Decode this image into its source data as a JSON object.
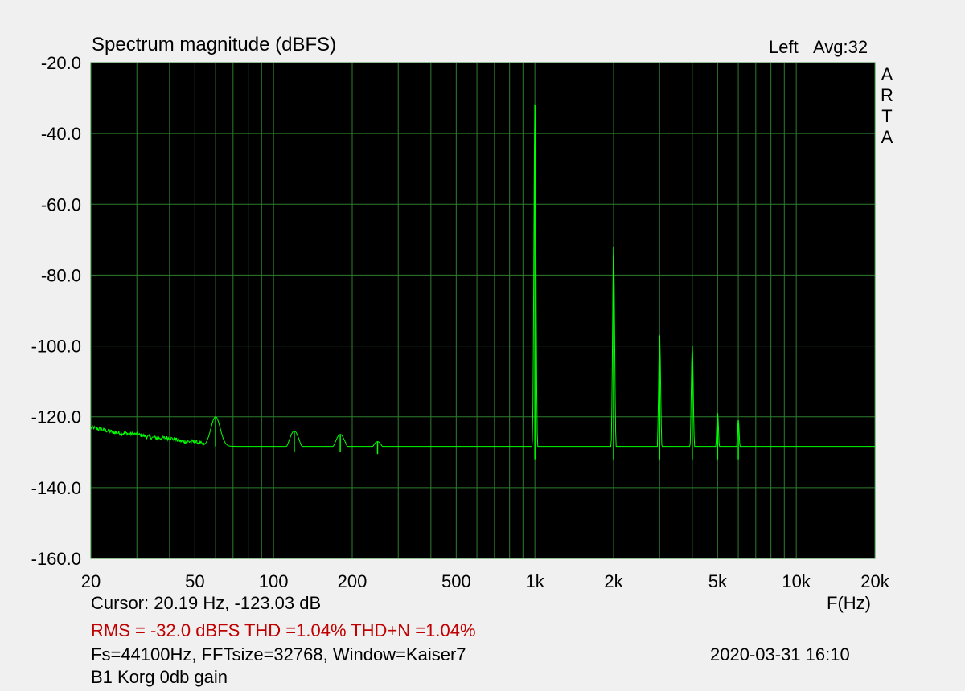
{
  "chart_data": {
    "type": "line",
    "title": "Spectrum magnitude (dBFS)",
    "channel": "Left",
    "avg": "Avg:32",
    "watermark": [
      "A",
      "R",
      "T",
      "A"
    ],
    "xlabel": "F(Hz)",
    "ylabel": "",
    "x_scale": "log",
    "xlim": [
      20,
      20000
    ],
    "ylim": [
      -160,
      -20
    ],
    "grid": true,
    "y_ticks": [
      -20,
      -40,
      -60,
      -80,
      -100,
      -120,
      -140,
      -160
    ],
    "y_tick_labels": [
      "-20.0",
      "-40.0",
      "-60.0",
      "-80.0",
      "-100.0",
      "-120.0",
      "-140.0",
      "-160.0"
    ],
    "x_ticks": [
      20,
      50,
      100,
      200,
      500,
      1000,
      2000,
      5000,
      10000,
      20000
    ],
    "x_tick_labels": [
      "20",
      "50",
      "100",
      "200",
      "500",
      "1k",
      "2k",
      "5k",
      "10k",
      "20k"
    ],
    "colors": {
      "trace": "#00ff00",
      "grid": "#2e7d2e",
      "plot_bg": "#000000",
      "page_bg": "#f0f0f0",
      "status": "#c00000"
    },
    "series": [
      {
        "noise_floor": [
          [
            20,
            -123
          ],
          [
            25,
            -124.5
          ],
          [
            30,
            -125
          ],
          [
            35,
            -126
          ],
          [
            40,
            -126
          ],
          [
            45,
            -127
          ],
          [
            50,
            -127
          ],
          [
            55,
            -128
          ],
          [
            70,
            -129
          ],
          [
            100,
            -130
          ],
          [
            150,
            -130
          ],
          [
            200,
            -130
          ],
          [
            300,
            -131
          ],
          [
            500,
            -131
          ],
          [
            1000,
            -132
          ],
          [
            2000,
            -132
          ],
          [
            5000,
            -132
          ],
          [
            10000,
            -132
          ],
          [
            20000,
            -132
          ]
        ],
        "peaks": [
          {
            "f": 60,
            "db": -120
          },
          {
            "f": 120,
            "db": -124
          },
          {
            "f": 180,
            "db": -125
          },
          {
            "f": 250,
            "db": -127
          },
          {
            "f": 1000,
            "db": -32
          },
          {
            "f": 2000,
            "db": -72
          },
          {
            "f": 3000,
            "db": -97
          },
          {
            "f": 4000,
            "db": -100
          },
          {
            "f": 5000,
            "db": -119
          },
          {
            "f": 6000,
            "db": -121
          }
        ]
      }
    ]
  },
  "cursor": "Cursor: 20.19 Hz, -123.03 dB",
  "stats": "RMS =  -32.0 dBFS  THD =1.04%  THD+N =1.04%",
  "settings": "Fs=44100Hz, FFTsize=32768, Window=Kaiser7",
  "datetime": "2020-03-31  16:10",
  "note": "B1 Korg 0db gain"
}
